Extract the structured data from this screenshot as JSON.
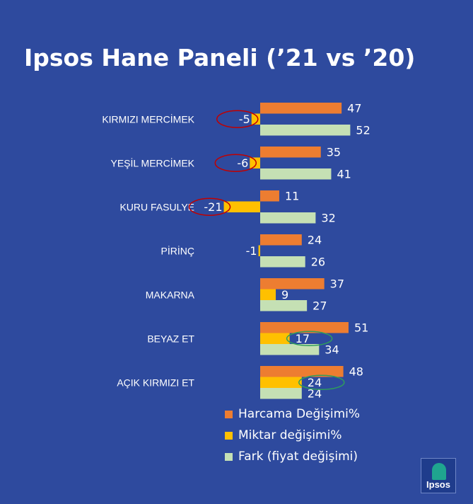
{
  "title": "Ipsos Hane Paneli (’21 vs ’20)",
  "chart_data": {
    "type": "bar",
    "orientation": "horizontal",
    "categories": [
      "KIRMIZI  MERCİMEK",
      "YEŞİL  MERCİMEK",
      "KURU FASULYE",
      "PİRİNÇ",
      "MAKARNA",
      "BEYAZ ET",
      "AÇIK KIRMIZI  ET"
    ],
    "series": [
      {
        "name": "Harcama Değişimi%",
        "color": "#ED7D31",
        "values": [
          47,
          35,
          11,
          24,
          37,
          51,
          48
        ]
      },
      {
        "name": "Miktar değişimi%",
        "color": "#FFC000",
        "values": [
          -5,
          -6,
          -21,
          -1,
          9,
          17,
          24
        ]
      },
      {
        "name": "Fark (fiyat değişimi)",
        "color": "#C5E0B4",
        "values": [
          52,
          41,
          32,
          26,
          27,
          34,
          24
        ]
      }
    ],
    "highlight_annotations": [
      {
        "category": "KIRMIZI  MERCİMEK",
        "series": "Miktar değişimi%",
        "color": "#C00000"
      },
      {
        "category": "YEŞİL  MERCİMEK",
        "series": "Miktar değişimi%",
        "color": "#C00000"
      },
      {
        "category": "KURU FASULYE",
        "series": "Miktar değişimi%",
        "color": "#C00000"
      },
      {
        "category": "BEYAZ ET",
        "series": "Miktar değişimi%",
        "color": "#2E9E5B"
      },
      {
        "category": "AÇIK KIRMIZI  ET",
        "series": "Miktar değişimi%",
        "color": "#2E9E5B"
      }
    ],
    "legend_position": "bottom",
    "grid": false
  },
  "legend": {
    "items": [
      {
        "label": "Harcama Değişimi%",
        "color": "#ED7D31"
      },
      {
        "label": "Miktar değişimi%",
        "color": "#FFC000"
      },
      {
        "label": "Fark (fiyat değişimi)",
        "color": "#C5E0B4"
      }
    ]
  },
  "logo": {
    "text": "Ipsos"
  },
  "colors": {
    "background": "#2E4A9E"
  }
}
